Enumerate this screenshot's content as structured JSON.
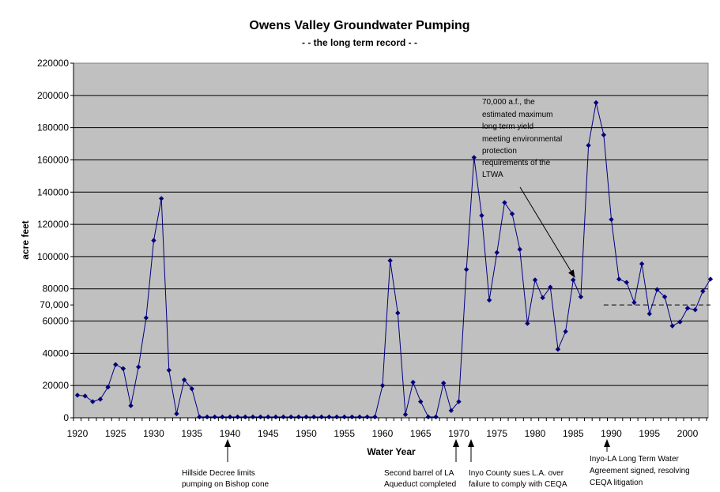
{
  "chart_data": {
    "type": "line",
    "title": "Owens Valley Groundwater Pumping",
    "subtitle": "- - the long term record - -",
    "xlabel": "Water Year",
    "ylabel": "acre feet",
    "xlim": [
      1920,
      2003
    ],
    "ylim": [
      0,
      220000
    ],
    "y_ticks": [
      0,
      20000,
      40000,
      60000,
      70000,
      80000,
      100000,
      120000,
      140000,
      160000,
      180000,
      200000,
      220000
    ],
    "y_tick_labels": [
      "0",
      "20000",
      "40000",
      "60000",
      "70,000",
      "80000",
      "100000",
      "120000",
      "140000",
      "160000",
      "180000",
      "200000",
      "220000"
    ],
    "x_ticks": [
      1920,
      1925,
      1930,
      1935,
      1940,
      1945,
      1950,
      1955,
      1960,
      1965,
      1970,
      1975,
      1980,
      1985,
      1990,
      1995,
      2000
    ],
    "x_tick_labels": [
      "1920",
      "1925",
      "1930",
      "1935",
      "1940",
      "1945",
      "1950",
      "1955",
      "1960",
      "1965",
      "1970",
      "1975",
      "1980",
      "1985",
      "1990",
      "1995",
      "2000"
    ],
    "grid": true,
    "legend": "none",
    "colors": {
      "plot_bg": "#c0c0c0",
      "series": "#000080",
      "grid": "#000000"
    },
    "series": [
      {
        "name": "",
        "x": [
          1920,
          1921,
          1922,
          1923,
          1924,
          1925,
          1926,
          1927,
          1928,
          1929,
          1930,
          1931,
          1932,
          1933,
          1934,
          1935,
          1936,
          1937,
          1938,
          1939,
          1940,
          1941,
          1942,
          1943,
          1944,
          1945,
          1946,
          1947,
          1948,
          1949,
          1950,
          1951,
          1952,
          1953,
          1954,
          1955,
          1956,
          1957,
          1958,
          1959,
          1960,
          1961,
          1962,
          1963,
          1964,
          1965,
          1966,
          1967,
          1968,
          1969,
          1970,
          1971,
          1972,
          1973,
          1974,
          1975,
          1976,
          1977,
          1978,
          1979,
          1980,
          1981,
          1982,
          1983,
          1984,
          1985,
          1986,
          1987,
          1988,
          1989,
          1990,
          1991,
          1992,
          1993,
          1994,
          1995,
          1996,
          1997,
          1998,
          1999,
          2000,
          2001,
          2002,
          2003
        ],
        "y": [
          14000,
          13500,
          10000,
          11500,
          19000,
          33000,
          30500,
          7500,
          31500,
          62000,
          110000,
          136000,
          29500,
          2500,
          23500,
          18000,
          500,
          500,
          500,
          500,
          500,
          500,
          500,
          500,
          500,
          500,
          500,
          500,
          500,
          500,
          500,
          500,
          500,
          500,
          500,
          500,
          500,
          500,
          500,
          500,
          20000,
          97500,
          65000,
          2000,
          22000,
          10000,
          500,
          500,
          21500,
          4500,
          10000,
          92000,
          161500,
          125500,
          73000,
          102500,
          133500,
          126500,
          104500,
          58500,
          85500,
          74500,
          81000,
          42500,
          53500,
          85500,
          75000,
          169000,
          195500,
          175500,
          123000,
          86000,
          84000,
          71500,
          95500,
          64500,
          79500,
          75000,
          57000,
          59500,
          68000,
          67000,
          78500,
          86000
        ]
      }
    ],
    "reference_line": {
      "y": 70000,
      "x_start": 1989,
      "x_end": 2003,
      "style": "dashed"
    },
    "annotations": [
      {
        "lines": [
          "70,000 a.f., the",
          "estimated maximum",
          "long term yield",
          "meeting environmental",
          "protection",
          "requirements of the",
          "LTWA"
        ],
        "arrow": true
      },
      {
        "lines": [
          "Hillside Decree limits",
          "pumping on Bishop cone"
        ],
        "arrow": true
      },
      {
        "lines": [
          "Second  barrel of LA",
          "Aqueduct completed"
        ],
        "arrow": true
      },
      {
        "lines": [
          "Inyo County sues L.A. over",
          "failure to comply with CEQA"
        ],
        "arrow": true
      },
      {
        "lines": [
          "Inyo-LA Long Term Water",
          "Agreement signed, resolving",
          "CEQA litigation"
        ],
        "arrow": true
      }
    ]
  }
}
